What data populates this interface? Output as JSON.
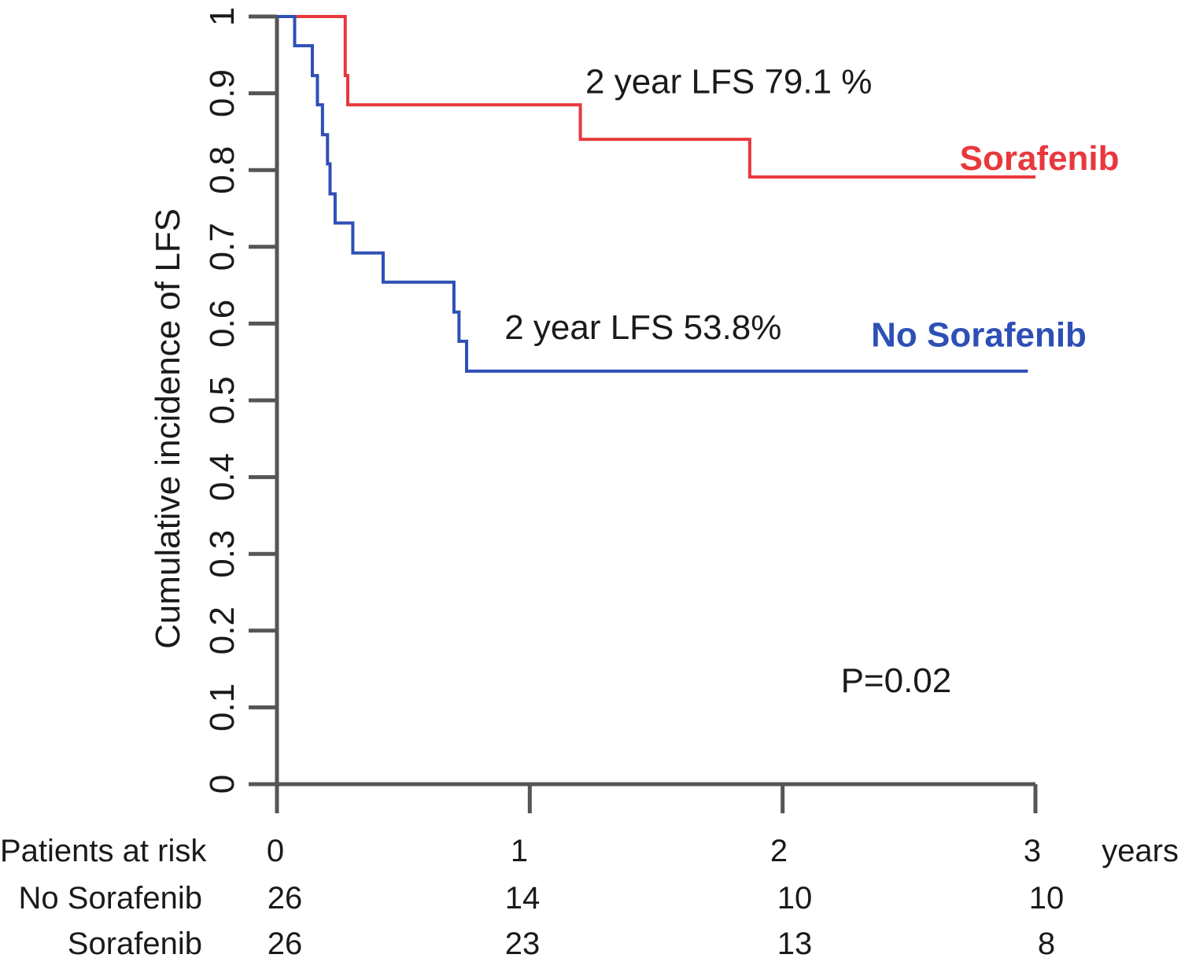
{
  "chart_data": {
    "type": "line",
    "step": true,
    "ylabel": "Cumulative incidence of LFS",
    "xunit_label": "years",
    "xlim": [
      0,
      3
    ],
    "ylim": [
      0,
      1
    ],
    "xticks": [
      "0",
      "1",
      "2",
      "3"
    ],
    "yticks": [
      "0",
      "0.1",
      "0.2",
      "0.3",
      "0.4",
      "0.5",
      "0.6",
      "0.7",
      "0.8",
      "0.9",
      "1"
    ],
    "grid": false,
    "series": [
      {
        "name": "Sorafenib",
        "color": "#e8383d",
        "x": [
          0,
          0.27,
          0.28,
          0.29,
          1.2,
          1.87,
          3.0
        ],
        "y": [
          1.0,
          0.923,
          0.885,
          0.885,
          0.84,
          0.791,
          0.791
        ]
      },
      {
        "name": "No Sorafenib",
        "color": "#2e4fb5",
        "x": [
          0,
          0.07,
          0.14,
          0.16,
          0.18,
          0.2,
          0.21,
          0.23,
          0.3,
          0.42,
          0.7,
          0.72,
          0.75,
          2.97
        ],
        "y": [
          1.0,
          0.962,
          0.923,
          0.885,
          0.846,
          0.808,
          0.769,
          0.731,
          0.692,
          0.654,
          0.615,
          0.577,
          0.538,
          0.538
        ]
      }
    ],
    "annotations": [
      {
        "text": "2 year LFS 79.1 %",
        "x": 1.22,
        "y": 0.9
      },
      {
        "text": "2 year LFS 53.8%",
        "x": 0.9,
        "y": 0.58
      },
      {
        "text": "P=0.02",
        "x": 2.23,
        "y": 0.12
      }
    ],
    "series_labels": [
      {
        "text": "Sorafenib",
        "x": 2.7,
        "y": 0.8
      },
      {
        "text": "No Sorafenib",
        "x": 2.35,
        "y": 0.57
      }
    ],
    "risk_table": {
      "header": "Patients at risk",
      "columns": [
        "0",
        "1",
        "2",
        "3"
      ],
      "rows": [
        {
          "label": "No Sorafenib",
          "values": [
            "26",
            "14",
            "10",
            "10"
          ]
        },
        {
          "label": "Sorafenib",
          "values": [
            "26",
            "23",
            "13",
            "8"
          ]
        }
      ]
    }
  }
}
